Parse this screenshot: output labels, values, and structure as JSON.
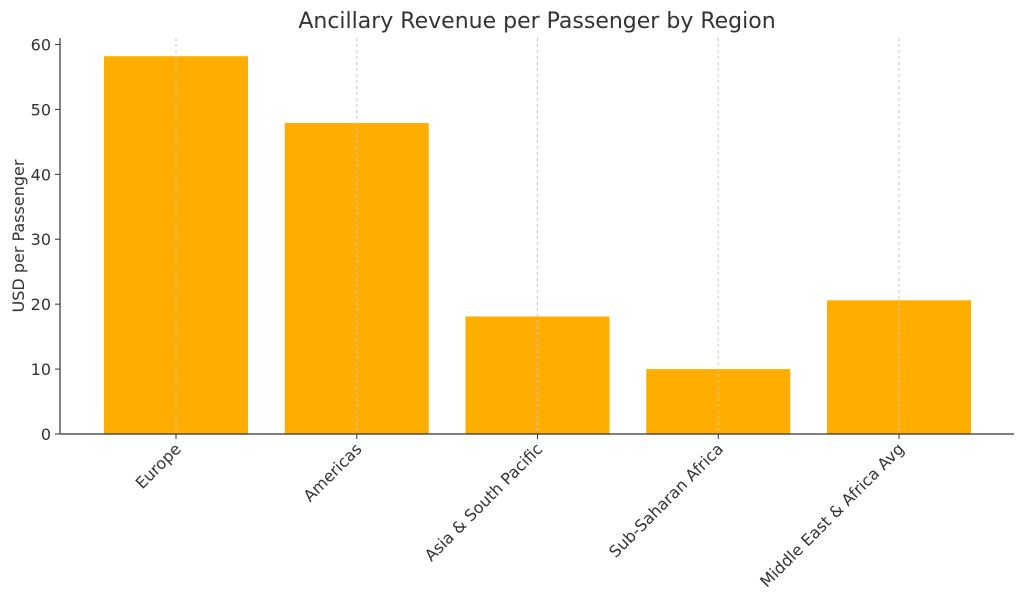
{
  "chart_data": {
    "type": "bar",
    "title": "Ancillary Revenue per Passenger by Region",
    "xlabel": "",
    "ylabel": "USD per Passenger",
    "categories": [
      "Europe",
      "Americas",
      "Asia & South Pacific",
      "Sub-Saharan Africa",
      "Middle East & Africa Avg"
    ],
    "values": [
      58.2,
      47.9,
      18.1,
      10.0,
      20.6
    ],
    "ylim": [
      0,
      61
    ],
    "yticks": [
      "0",
      "10",
      "20",
      "30",
      "40",
      "50",
      "60"
    ],
    "grid": "vertical dashed",
    "bar_color": "#FFAE00",
    "grid_color": "#c8c8c8",
    "axis_color": "#333333"
  }
}
